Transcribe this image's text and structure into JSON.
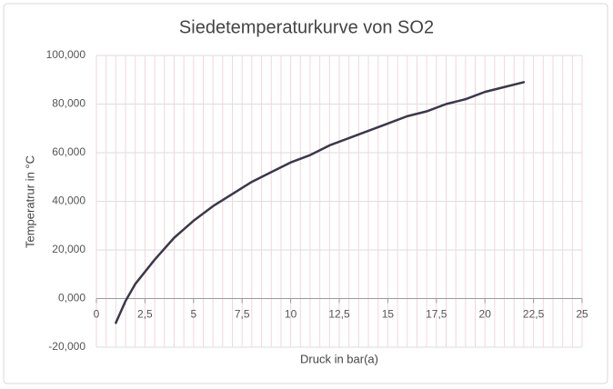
{
  "chart_data": {
    "type": "line",
    "title": "Siedetemperaturkurve von SO2",
    "x_label": "Druck in bar(a)",
    "y_label": "Temperatrur in °C",
    "x": [
      1,
      1.5,
      2,
      3,
      4,
      5,
      6,
      7,
      8,
      9,
      10,
      11,
      12,
      13,
      14,
      15,
      16,
      17,
      18,
      19,
      20,
      21,
      22
    ],
    "values": [
      -10,
      -1,
      6,
      16,
      25,
      32,
      38,
      43,
      48,
      52,
      56,
      59,
      63,
      66,
      69,
      72,
      75,
      77,
      80,
      82,
      85,
      87,
      89
    ],
    "color": "#3b3849",
    "xlim": [
      0,
      25
    ],
    "xticks": [
      0,
      {
        "value": 2.5,
        "label": "2,5"
      },
      5,
      {
        "value": 7.5,
        "label": "7,5"
      },
      10,
      {
        "value": 12.5,
        "label": "12,5"
      },
      15,
      {
        "value": 17.5,
        "label": "17,5"
      },
      20,
      {
        "value": 22.5,
        "label": "22,5"
      },
      25
    ],
    "ylim": [
      -20,
      100
    ],
    "yticks": [
      {
        "value": -20,
        "label": "-20,000"
      },
      {
        "value": 0,
        "label": "0,000"
      },
      {
        "value": 20,
        "label": "20,000"
      },
      {
        "value": 40,
        "label": "40,000"
      },
      {
        "value": 60,
        "label": "60,000"
      },
      {
        "value": 80,
        "label": "80,000"
      },
      {
        "value": 100,
        "label": "100,000"
      }
    ],
    "grid": true,
    "x_minor_step": 0.5
  }
}
